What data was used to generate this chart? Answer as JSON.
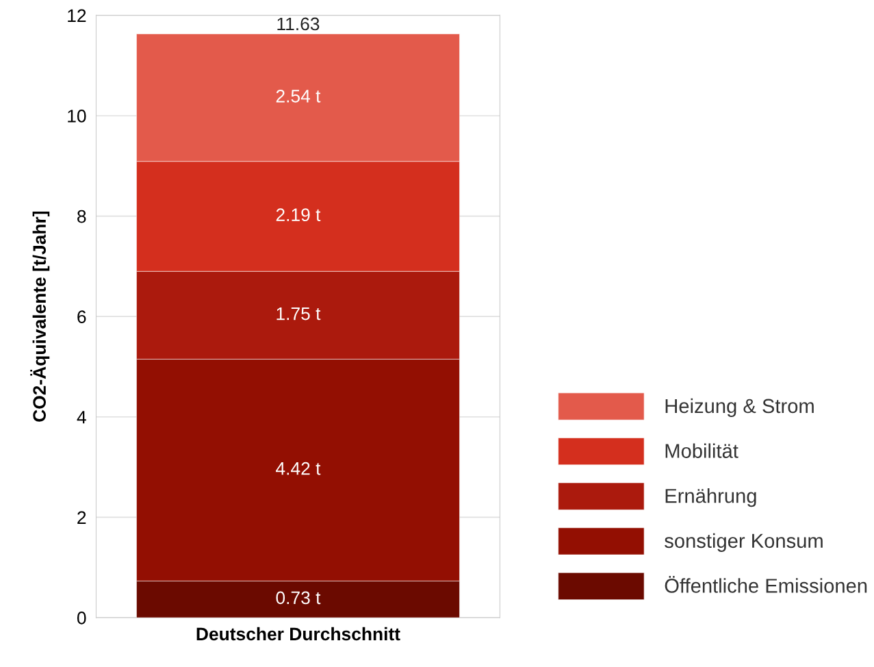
{
  "chart_data": {
    "type": "bar",
    "stacked": true,
    "ylabel": "CO2-Äquivalente [t/Jahr]",
    "categories": [
      "Deutscher Durchschnitt"
    ],
    "series": [
      {
        "name": "Öffentliche Emissionen",
        "color": "#6b0a00",
        "values": [
          0.73
        ],
        "value_labels": [
          "0.73 t"
        ]
      },
      {
        "name": "sonstiger Konsum",
        "color": "#930f02",
        "values": [
          4.42
        ],
        "value_labels": [
          "4.42 t"
        ]
      },
      {
        "name": "Ernährung",
        "color": "#ab1a0d",
        "values": [
          1.75
        ],
        "value_labels": [
          "1.75 t"
        ]
      },
      {
        "name": "Mobilität",
        "color": "#d42f1e",
        "values": [
          2.19
        ],
        "value_labels": [
          "2.19 t"
        ]
      },
      {
        "name": "Heizung & Strom",
        "color": "#e35a4b",
        "values": [
          2.54
        ],
        "value_labels": [
          "2.54 t"
        ]
      }
    ],
    "totals": [
      "11.63"
    ],
    "ylim": [
      0,
      12
    ],
    "yticks": [
      0,
      2,
      4,
      6,
      8,
      10,
      12
    ],
    "grid": "y",
    "legend": "right"
  }
}
